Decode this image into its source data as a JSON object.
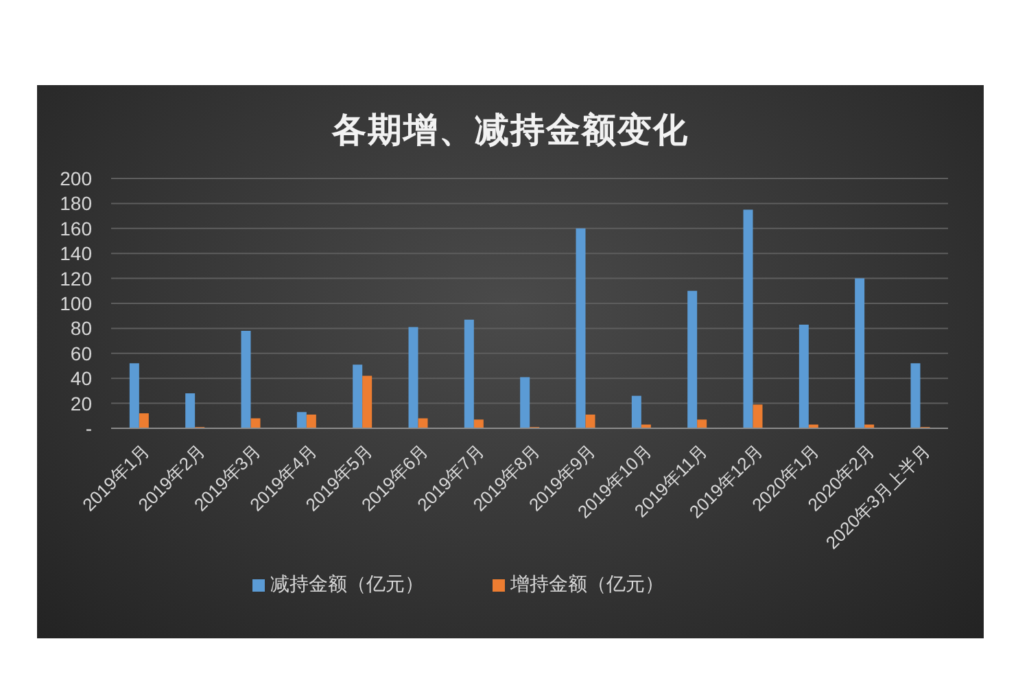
{
  "chart_data": {
    "type": "bar",
    "title": "各期增、减持金额变化",
    "categories": [
      "2019年1月",
      "2019年2月",
      "2019年3月",
      "2019年4月",
      "2019年5月",
      "2019年6月",
      "2019年7月",
      "2019年8月",
      "2019年9月",
      "2019年10月",
      "2019年11月",
      "2019年12月",
      "2020年1月",
      "2020年2月",
      "2020年3月上半月"
    ],
    "series": [
      {
        "name": "减持金额（亿元）",
        "color": "#5b9bd5",
        "values": [
          52,
          28,
          78,
          13,
          51,
          81,
          87,
          41,
          160,
          26,
          110,
          175,
          83,
          120,
          52
        ]
      },
      {
        "name": "增持金额（亿元）",
        "color": "#ed7d31",
        "values": [
          12,
          1,
          8,
          11,
          42,
          8,
          7,
          1,
          11,
          3,
          7,
          19,
          3,
          3,
          1
        ]
      }
    ],
    "ylim": [
      0,
      200
    ],
    "yticks": [
      {
        "value": 0,
        "label": "-"
      },
      20,
      40,
      60,
      80,
      100,
      120,
      140,
      160,
      180,
      200
    ],
    "grid": "y",
    "legend": "bottom"
  }
}
